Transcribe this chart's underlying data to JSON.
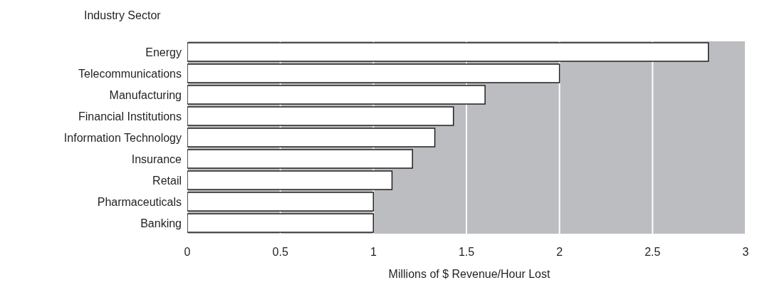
{
  "chart_data": {
    "type": "bar",
    "orientation": "horizontal",
    "ylabel": "Industry Sector",
    "xlabel": "Millions of $ Revenue/Hour Lost",
    "categories": [
      "Energy",
      "Telecommunications",
      "Manufacturing",
      "Financial Institutions",
      "Information Technology",
      "Insurance",
      "Retail",
      "Pharmaceuticals",
      "Banking"
    ],
    "values": [
      2.8,
      2,
      1.6,
      1.43,
      1.33,
      1.21,
      1.1,
      1,
      1
    ],
    "color": "#ffffff",
    "xlim": [
      0,
      3
    ],
    "xticks": [
      0,
      0.5,
      1,
      1.5,
      2,
      2.5,
      3
    ],
    "grid": "x"
  }
}
